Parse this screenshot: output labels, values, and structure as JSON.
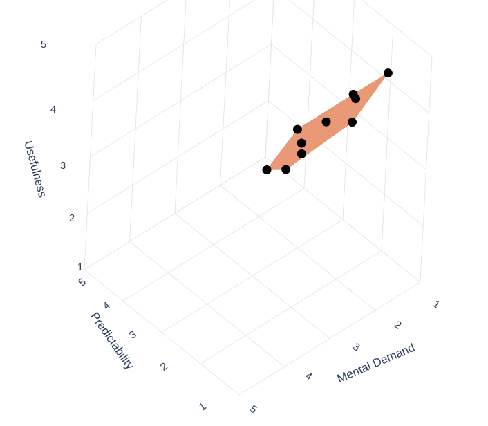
{
  "chart_data": {
    "type": "scatter",
    "x_axis": {
      "title": "Mental Demand",
      "ticks": [
        "1",
        "2",
        "3",
        "4",
        "5"
      ],
      "range": [
        1,
        5
      ]
    },
    "y_axis": {
      "title": "Predictability",
      "ticks": [
        "1",
        "2",
        "3",
        "4",
        "5"
      ],
      "range": [
        1,
        5
      ]
    },
    "z_axis": {
      "title": "Usefulness",
      "ticks": [
        "1",
        "2",
        "3",
        "4",
        "5"
      ],
      "range": [
        1,
        5
      ]
    },
    "points": [
      {
        "x": 3.8,
        "y": 4.8,
        "z": 5.0
      },
      {
        "x": 2.6,
        "y": 4.9,
        "z": 5.0
      },
      {
        "x": 1.8,
        "y": 4.8,
        "z": 5.0
      },
      {
        "x": 4.2,
        "y": 5.0,
        "z": 4.6
      },
      {
        "x": 3.6,
        "y": 4.7,
        "z": 4.6
      },
      {
        "x": 2.2,
        "y": 4.4,
        "z": 4.6
      },
      {
        "x": 3.4,
        "y": 4.5,
        "z": 4.2
      },
      {
        "x": 2.6,
        "y": 4.2,
        "z": 4.2
      },
      {
        "x": 3.9,
        "y": 4.2,
        "z": 4.0
      },
      {
        "x": 2.1,
        "y": 4.3,
        "z": 4.0
      }
    ],
    "hull": {
      "color": "#e8906a"
    },
    "marker_color": "#000000",
    "grid": true
  }
}
